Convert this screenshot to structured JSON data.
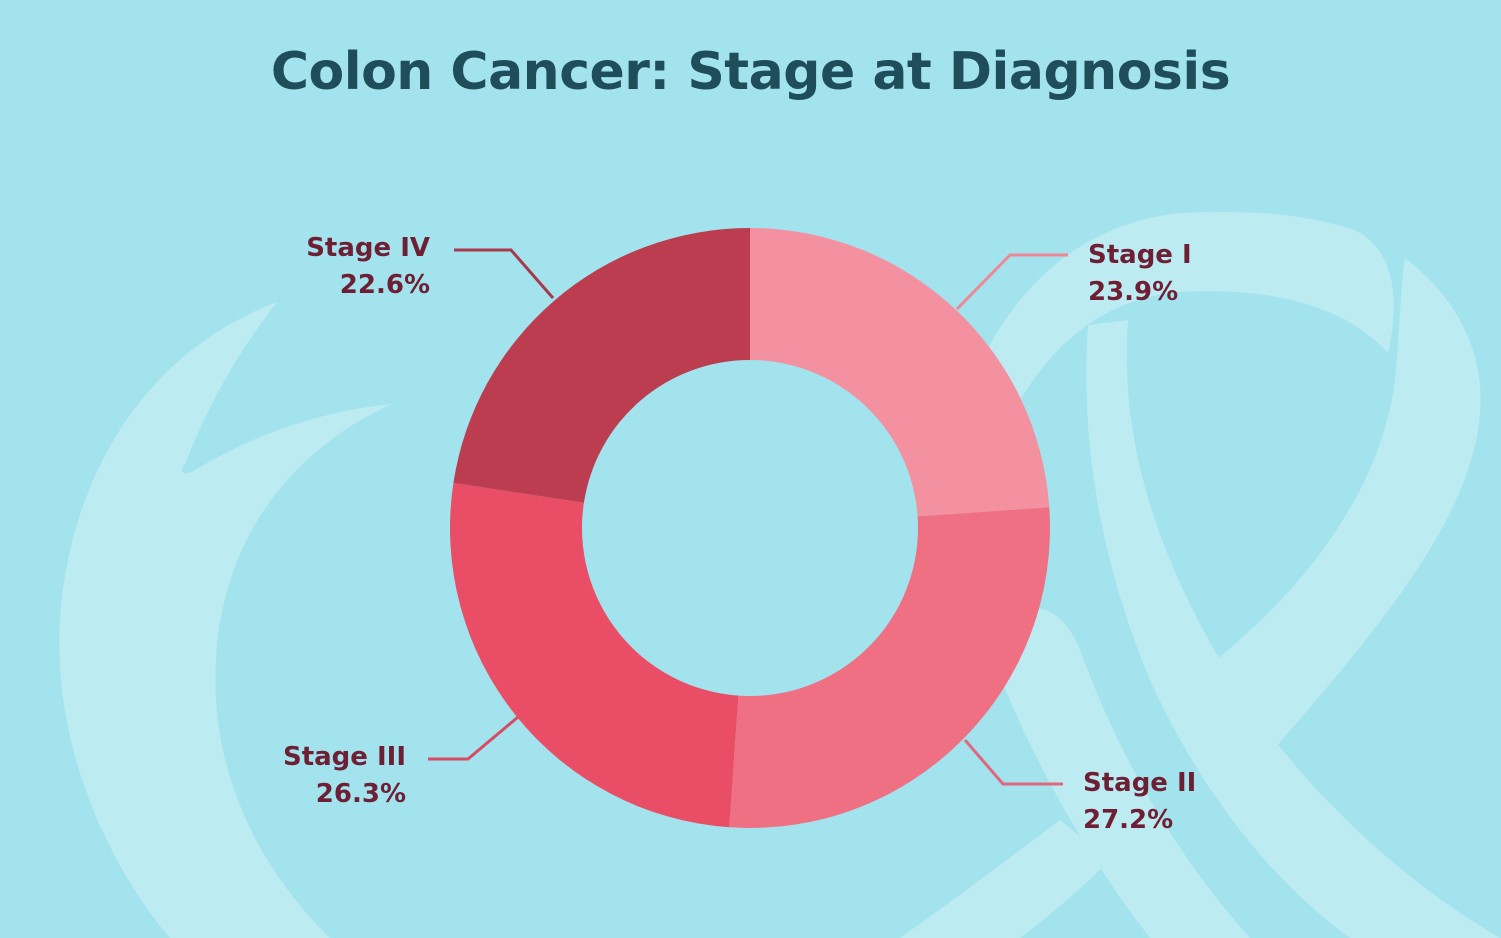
{
  "title": "Colon Cancer: Stage at Diagnosis",
  "colors": {
    "background": "#a2e3ee",
    "ribbon": "#bdebf2",
    "title": "#1f4d5a",
    "label": "#6e1f33"
  },
  "labels": {
    "stage_1": {
      "name": "Stage I",
      "value": "23.9%"
    },
    "stage_2": {
      "name": "Stage II",
      "value": "27.2%"
    },
    "stage_3": {
      "name": "Stage III",
      "value": "26.3%"
    },
    "stage_4": {
      "name": "Stage IV",
      "value": "22.6%"
    }
  },
  "chart_data": {
    "type": "pie",
    "subtype": "donut",
    "title": "Colon Cancer: Stage at Diagnosis",
    "categories": [
      "Stage I",
      "Stage II",
      "Stage III",
      "Stage IV"
    ],
    "values": [
      23.9,
      27.2,
      26.3,
      22.6
    ],
    "unit": "%",
    "colors": [
      "#f491a0",
      "#ef7082",
      "#ea4e67",
      "#bc3c50"
    ],
    "start_angle": "12 o'clock",
    "direction": "clockwise",
    "legend": "none (callout labels with leader lines)",
    "center": [
      750,
      528
    ],
    "outer_radius": 300,
    "inner_radius": 168
  }
}
